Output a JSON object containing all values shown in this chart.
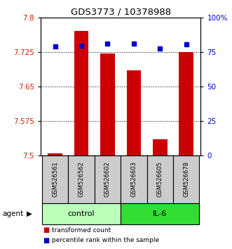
{
  "title": "GDS3773 / 10378988",
  "samples": [
    "GSM526561",
    "GSM526562",
    "GSM526602",
    "GSM526603",
    "GSM526605",
    "GSM526678"
  ],
  "bar_values": [
    7.505,
    7.77,
    7.722,
    7.685,
    7.535,
    7.725
  ],
  "percentile_values": [
    79,
    79.5,
    81,
    81,
    77.5,
    80.5
  ],
  "bar_color": "#cc0000",
  "percentile_color": "#0000cc",
  "ymin": 7.5,
  "ymax": 7.8,
  "yticks": [
    7.5,
    7.575,
    7.65,
    7.725,
    7.8
  ],
  "ytick_labels": [
    "7.5",
    "7.575",
    "7.65",
    "7.725",
    "7.8"
  ],
  "right_yticks": [
    0,
    25,
    50,
    75,
    100
  ],
  "right_ytick_labels": [
    "0",
    "25",
    "50",
    "75",
    "100%"
  ],
  "group_control_color": "#bbffbb",
  "group_il6_color": "#33dd33",
  "agent_label": "agent",
  "legend_bar_label": "transformed count",
  "legend_pct_label": "percentile rank within the sample",
  "tick_label_color_left": "#cc2200",
  "tick_label_color_right": "#0000cc",
  "sample_box_color": "#cccccc",
  "dotted_lines": [
    7.575,
    7.65,
    7.725
  ]
}
